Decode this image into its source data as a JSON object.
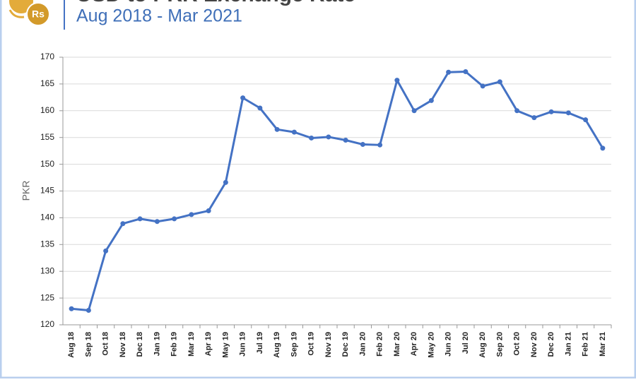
{
  "logo_text": "Rs",
  "chart_data": {
    "type": "line",
    "title": "USD to PKR Exchange Rate",
    "subtitle": "Aug 2018 - Mar 2021",
    "y_label": "PKR",
    "categories": [
      "Aug 18",
      "Sep 18",
      "Oct 18",
      "Nov 18",
      "Dec 18",
      "Jan 19",
      "Feb 19",
      "Mar 19",
      "Apr 19",
      "May 19",
      "Jun 19",
      "Jul 19",
      "Aug 19",
      "Sep 19",
      "Oct 19",
      "Nov 19",
      "Dec 19",
      "Jan 20",
      "Feb 20",
      "Mar 20",
      "Apr 20",
      "May 20",
      "Jun 20",
      "Jul 20",
      "Aug 20",
      "Sep 20",
      "Oct 20",
      "Nov 20",
      "Dec 20",
      "Jan 21",
      "Feb 21",
      "Mar 21"
    ],
    "values": [
      123.0,
      122.7,
      133.8,
      138.9,
      139.8,
      139.3,
      139.8,
      140.6,
      141.3,
      146.6,
      162.4,
      160.5,
      156.5,
      156.0,
      154.9,
      155.1,
      154.5,
      153.7,
      153.6,
      165.7,
      160.0,
      161.9,
      167.2,
      167.3,
      164.6,
      165.4,
      160.0,
      158.7,
      159.8,
      159.6,
      158.3,
      153.0
    ],
    "color": "#4472c4",
    "ylim": [
      120,
      170
    ],
    "yticks": [
      120,
      125,
      130,
      135,
      140,
      145,
      150,
      155,
      160,
      165,
      170
    ],
    "grid": true
  }
}
